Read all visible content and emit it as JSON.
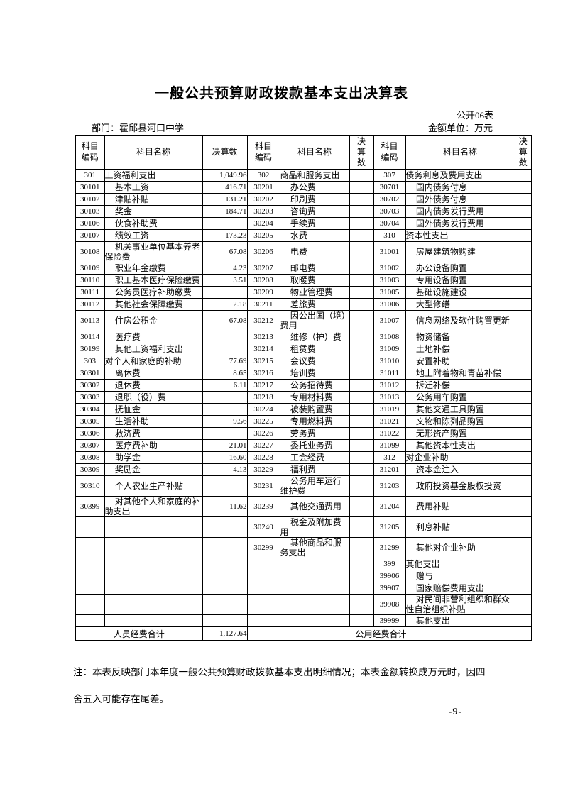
{
  "doc": {
    "title": "一般公共预算财政拨款基本支出决算表",
    "table_label": "公开06表",
    "department": "部门：霍邱县河口中学",
    "unit": "金额单位：万元",
    "note_line1": "注：本表反映部门本年度一般公共预算财政拨款基本支出明细情况；本表金额转换成万元时，因四",
    "note_line2": "舍五入可能存在尾差。",
    "page_number": "-9-"
  },
  "table": {
    "header": {
      "code": "科目编码",
      "name": "科目名称",
      "value": "决算数"
    },
    "rows": [
      [
        [
          "301",
          "工资福利支出",
          "1,049.96",
          0
        ],
        [
          "302",
          "商品和服务支出",
          "",
          0
        ],
        [
          "307",
          "债务利息及费用支出",
          "",
          0
        ]
      ],
      [
        [
          "30101",
          "基本工资",
          "416.71",
          1
        ],
        [
          "30201",
          "办公费",
          "",
          1
        ],
        [
          "30701",
          "国内债务付息",
          "",
          1
        ]
      ],
      [
        [
          "30102",
          "津贴补贴",
          "131.21",
          1
        ],
        [
          "30202",
          "印刷费",
          "",
          1
        ],
        [
          "30702",
          "国外债务付息",
          "",
          1
        ]
      ],
      [
        [
          "30103",
          "奖金",
          "184.71",
          1
        ],
        [
          "30203",
          "咨询费",
          "",
          1
        ],
        [
          "30703",
          "国内债务发行费用",
          "",
          1
        ]
      ],
      [
        [
          "30106",
          "伙食补助费",
          "",
          1
        ],
        [
          "30204",
          "手续费",
          "",
          1
        ],
        [
          "30704",
          "国外债务发行费用",
          "",
          1
        ]
      ],
      [
        [
          "30107",
          "绩效工资",
          "173.23",
          1
        ],
        [
          "30205",
          "水费",
          "",
          1
        ],
        [
          "310",
          "资本性支出",
          "",
          0
        ]
      ],
      [
        [
          "30108",
          "机关事业单位基本养老保险费",
          "67.08",
          1
        ],
        [
          "30206",
          "电费",
          "",
          1
        ],
        [
          "31001",
          "房屋建筑物购建",
          "",
          1
        ]
      ],
      [
        [
          "30109",
          "职业年金缴费",
          "4.23",
          1
        ],
        [
          "30207",
          "邮电费",
          "",
          1
        ],
        [
          "31002",
          "办公设备购置",
          "",
          1
        ]
      ],
      [
        [
          "30110",
          "职工基本医疗保险缴费",
          "3.51",
          1
        ],
        [
          "30208",
          "取暖费",
          "",
          1
        ],
        [
          "31003",
          "专用设备购置",
          "",
          1
        ]
      ],
      [
        [
          "30111",
          "公务员医疗补助缴费",
          "",
          1
        ],
        [
          "30209",
          "物业管理费",
          "",
          1
        ],
        [
          "31005",
          "基础设施建设",
          "",
          1
        ]
      ],
      [
        [
          "30112",
          "其他社会保障缴费",
          "2.18",
          1
        ],
        [
          "30211",
          "差旅费",
          "",
          1
        ],
        [
          "31006",
          "大型修缮",
          "",
          1
        ]
      ],
      [
        [
          "30113",
          "住房公积金",
          "67.08",
          1
        ],
        [
          "30212",
          "因公出国（境）费用",
          "",
          1
        ],
        [
          "31007",
          "信息网络及软件购置更新",
          "",
          1
        ]
      ],
      [
        [
          "30114",
          "医疗费",
          "",
          1
        ],
        [
          "30213",
          "维修（护）费",
          "",
          1
        ],
        [
          "31008",
          "物资储备",
          "",
          1
        ]
      ],
      [
        [
          "30199",
          "其他工资福利支出",
          "",
          1
        ],
        [
          "30214",
          "租赁费",
          "",
          1
        ],
        [
          "31009",
          "土地补偿",
          "",
          1
        ]
      ],
      [
        [
          "303",
          "对个人和家庭的补助",
          "77.69",
          0
        ],
        [
          "30215",
          "会议费",
          "",
          1
        ],
        [
          "31010",
          "安置补助",
          "",
          1
        ]
      ],
      [
        [
          "30301",
          "离休费",
          "8.65",
          1
        ],
        [
          "30216",
          "培训费",
          "",
          1
        ],
        [
          "31011",
          "地上附着物和青苗补偿",
          "",
          1
        ]
      ],
      [
        [
          "30302",
          "退休费",
          "6.11",
          1
        ],
        [
          "30217",
          "公务招待费",
          "",
          1
        ],
        [
          "31012",
          "拆迁补偿",
          "",
          1
        ]
      ],
      [
        [
          "30303",
          "退职（役）费",
          "",
          1
        ],
        [
          "30218",
          "专用材料费",
          "",
          1
        ],
        [
          "31013",
          "公务用车购置",
          "",
          1
        ]
      ],
      [
        [
          "30304",
          "抚恤金",
          "",
          1
        ],
        [
          "30224",
          "被装购置费",
          "",
          1
        ],
        [
          "31019",
          "其他交通工具购置",
          "",
          1
        ]
      ],
      [
        [
          "30305",
          "生活补助",
          "9.56",
          1
        ],
        [
          "30225",
          "专用燃料费",
          "",
          1
        ],
        [
          "31021",
          "文物和陈列品购置",
          "",
          1
        ]
      ],
      [
        [
          "30306",
          "救济费",
          "",
          1
        ],
        [
          "30226",
          "劳务费",
          "",
          1
        ],
        [
          "31022",
          "无形资产购置",
          "",
          1
        ]
      ],
      [
        [
          "30307",
          "医疗费补助",
          "21.01",
          1
        ],
        [
          "30227",
          "委托业务费",
          "",
          1
        ],
        [
          "31099",
          "其他资本性支出",
          "",
          1
        ]
      ],
      [
        [
          "30308",
          "助学金",
          "16.60",
          1
        ],
        [
          "30228",
          "工会经费",
          "",
          1
        ],
        [
          "312",
          "对企业补助",
          "",
          0
        ]
      ],
      [
        [
          "30309",
          "奖励金",
          "4.13",
          1
        ],
        [
          "30229",
          "福利费",
          "",
          1
        ],
        [
          "31201",
          "资本金注入",
          "",
          1
        ]
      ],
      [
        [
          "30310",
          "个人农业生产补贴",
          "",
          1
        ],
        [
          "30231",
          "公务用车运行维护费",
          "",
          1
        ],
        [
          "31203",
          "政府投资基金股权投资",
          "",
          1
        ]
      ],
      [
        [
          "30399",
          "对其他个人和家庭的补助支出",
          "11.62",
          1
        ],
        [
          "30239",
          "其他交通费用",
          "",
          1
        ],
        [
          "31204",
          "费用补贴",
          "",
          1
        ]
      ],
      [
        [
          "",
          "",
          "",
          0
        ],
        [
          "30240",
          "税金及附加费用",
          "",
          1
        ],
        [
          "31205",
          "利息补贴",
          "",
          1
        ]
      ],
      [
        [
          "",
          "",
          "",
          0
        ],
        [
          "30299",
          "其他商品和服务支出",
          "",
          1
        ],
        [
          "31299",
          "其他对企业补助",
          "",
          1
        ]
      ],
      [
        [
          "",
          "",
          "",
          0
        ],
        [
          "",
          "",
          "",
          0
        ],
        [
          "399",
          "其他支出",
          "",
          0
        ]
      ],
      [
        [
          "",
          "",
          "",
          0
        ],
        [
          "",
          "",
          "",
          0
        ],
        [
          "39906",
          "赠与",
          "",
          1
        ]
      ],
      [
        [
          "",
          "",
          "",
          0
        ],
        [
          "",
          "",
          "",
          0
        ],
        [
          "39907",
          "国家赔偿费用支出",
          "",
          1
        ]
      ],
      [
        [
          "",
          "",
          "",
          0
        ],
        [
          "",
          "",
          "",
          0
        ],
        [
          "39908",
          "对民间非营利组织和群众性自治组织补贴",
          "",
          1
        ]
      ],
      [
        [
          "",
          "",
          "",
          0
        ],
        [
          "",
          "",
          "",
          0
        ],
        [
          "39999",
          "其他支出",
          "",
          1
        ]
      ]
    ],
    "footer": {
      "personnel_total_label": "人员经费合计",
      "personnel_total_value": "1,127.64",
      "public_total_label": "公用经费合计",
      "public_total_value": ""
    }
  }
}
